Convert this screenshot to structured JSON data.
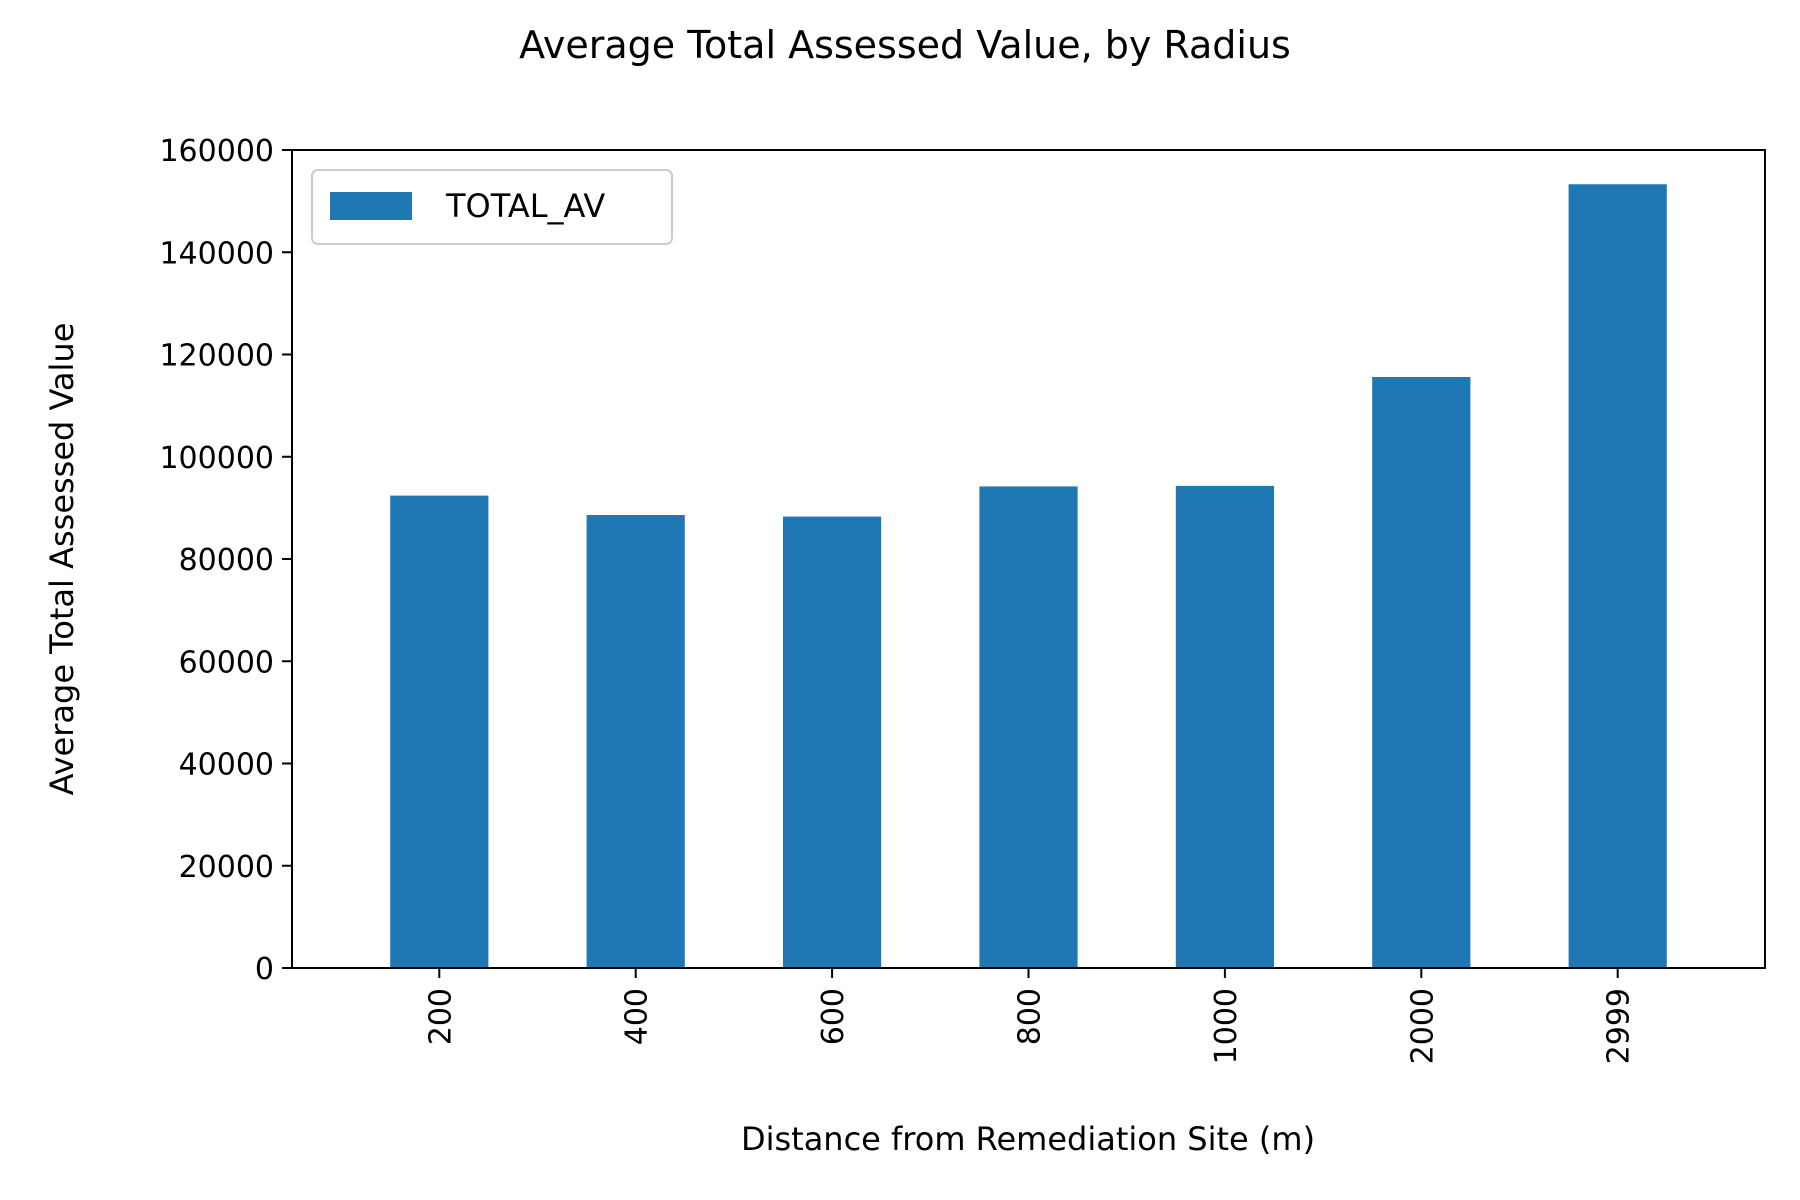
{
  "chart_data": {
    "type": "bar",
    "title": "Average Total Assessed Value, by Radius",
    "xlabel": "Distance from Remediation Site (m)",
    "ylabel": "Average Total Assessed Value",
    "categories": [
      "200",
      "400",
      "600",
      "800",
      "1000",
      "2000",
      "2999"
    ],
    "series": [
      {
        "name": "TOTAL_AV",
        "values": [
          92400,
          88600,
          88300,
          94200,
          94300,
          115600,
          153300
        ]
      }
    ],
    "ylim": [
      0,
      160000
    ],
    "yticks": [
      0,
      20000,
      40000,
      60000,
      80000,
      100000,
      120000,
      140000,
      160000
    ],
    "ytick_labels": [
      "0",
      "20000",
      "40000",
      "60000",
      "80000",
      "100000",
      "120000",
      "140000",
      "160000"
    ],
    "grid": false,
    "legend_position": "top-left",
    "bar_color": "#1f77b4"
  }
}
